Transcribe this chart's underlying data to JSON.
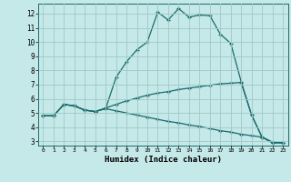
{
  "title": "",
  "xlabel": "Humidex (Indice chaleur)",
  "ylabel": "",
  "background_color": "#c5e8e8",
  "grid_color": "#a0c8c8",
  "line_color": "#1a6b6b",
  "xlim": [
    -0.5,
    23.5
  ],
  "ylim": [
    2.7,
    12.7
  ],
  "xticks": [
    0,
    1,
    2,
    3,
    4,
    5,
    6,
    7,
    8,
    9,
    10,
    11,
    12,
    13,
    14,
    15,
    16,
    17,
    18,
    19,
    20,
    21,
    22,
    23
  ],
  "yticks": [
    3,
    4,
    5,
    6,
    7,
    8,
    9,
    10,
    11,
    12
  ],
  "lines": [
    {
      "x": [
        0,
        1,
        2,
        3,
        4,
        5,
        6,
        7,
        8,
        9,
        10,
        11,
        12,
        13,
        14,
        15,
        16,
        17,
        18,
        19,
        20,
        21,
        22,
        23
      ],
      "y": [
        4.8,
        4.8,
        5.6,
        5.5,
        5.2,
        5.1,
        5.3,
        7.5,
        8.6,
        9.45,
        10.0,
        12.1,
        11.55,
        12.35,
        11.75,
        11.9,
        11.85,
        10.55,
        9.9,
        7.2,
        4.85,
        3.3,
        2.9,
        2.9
      ]
    },
    {
      "x": [
        0,
        1,
        2,
        3,
        4,
        5,
        6,
        7,
        8,
        9,
        10,
        11,
        12,
        13,
        14,
        15,
        16,
        17,
        18,
        19,
        20,
        21,
        22,
        23
      ],
      "y": [
        4.8,
        4.8,
        5.6,
        5.5,
        5.2,
        5.1,
        5.35,
        5.6,
        5.85,
        6.05,
        6.25,
        6.4,
        6.5,
        6.65,
        6.75,
        6.85,
        6.95,
        7.05,
        7.1,
        7.15,
        4.85,
        3.3,
        2.9,
        2.9
      ]
    },
    {
      "x": [
        0,
        1,
        2,
        3,
        4,
        5,
        6,
        7,
        8,
        9,
        10,
        11,
        12,
        13,
        14,
        15,
        16,
        17,
        18,
        19,
        20,
        21,
        22,
        23
      ],
      "y": [
        4.8,
        4.8,
        5.6,
        5.5,
        5.2,
        5.1,
        5.3,
        5.15,
        5.0,
        4.85,
        4.7,
        4.55,
        4.4,
        4.3,
        4.15,
        4.05,
        3.9,
        3.75,
        3.65,
        3.5,
        3.4,
        3.3,
        2.95,
        2.9
      ]
    }
  ]
}
